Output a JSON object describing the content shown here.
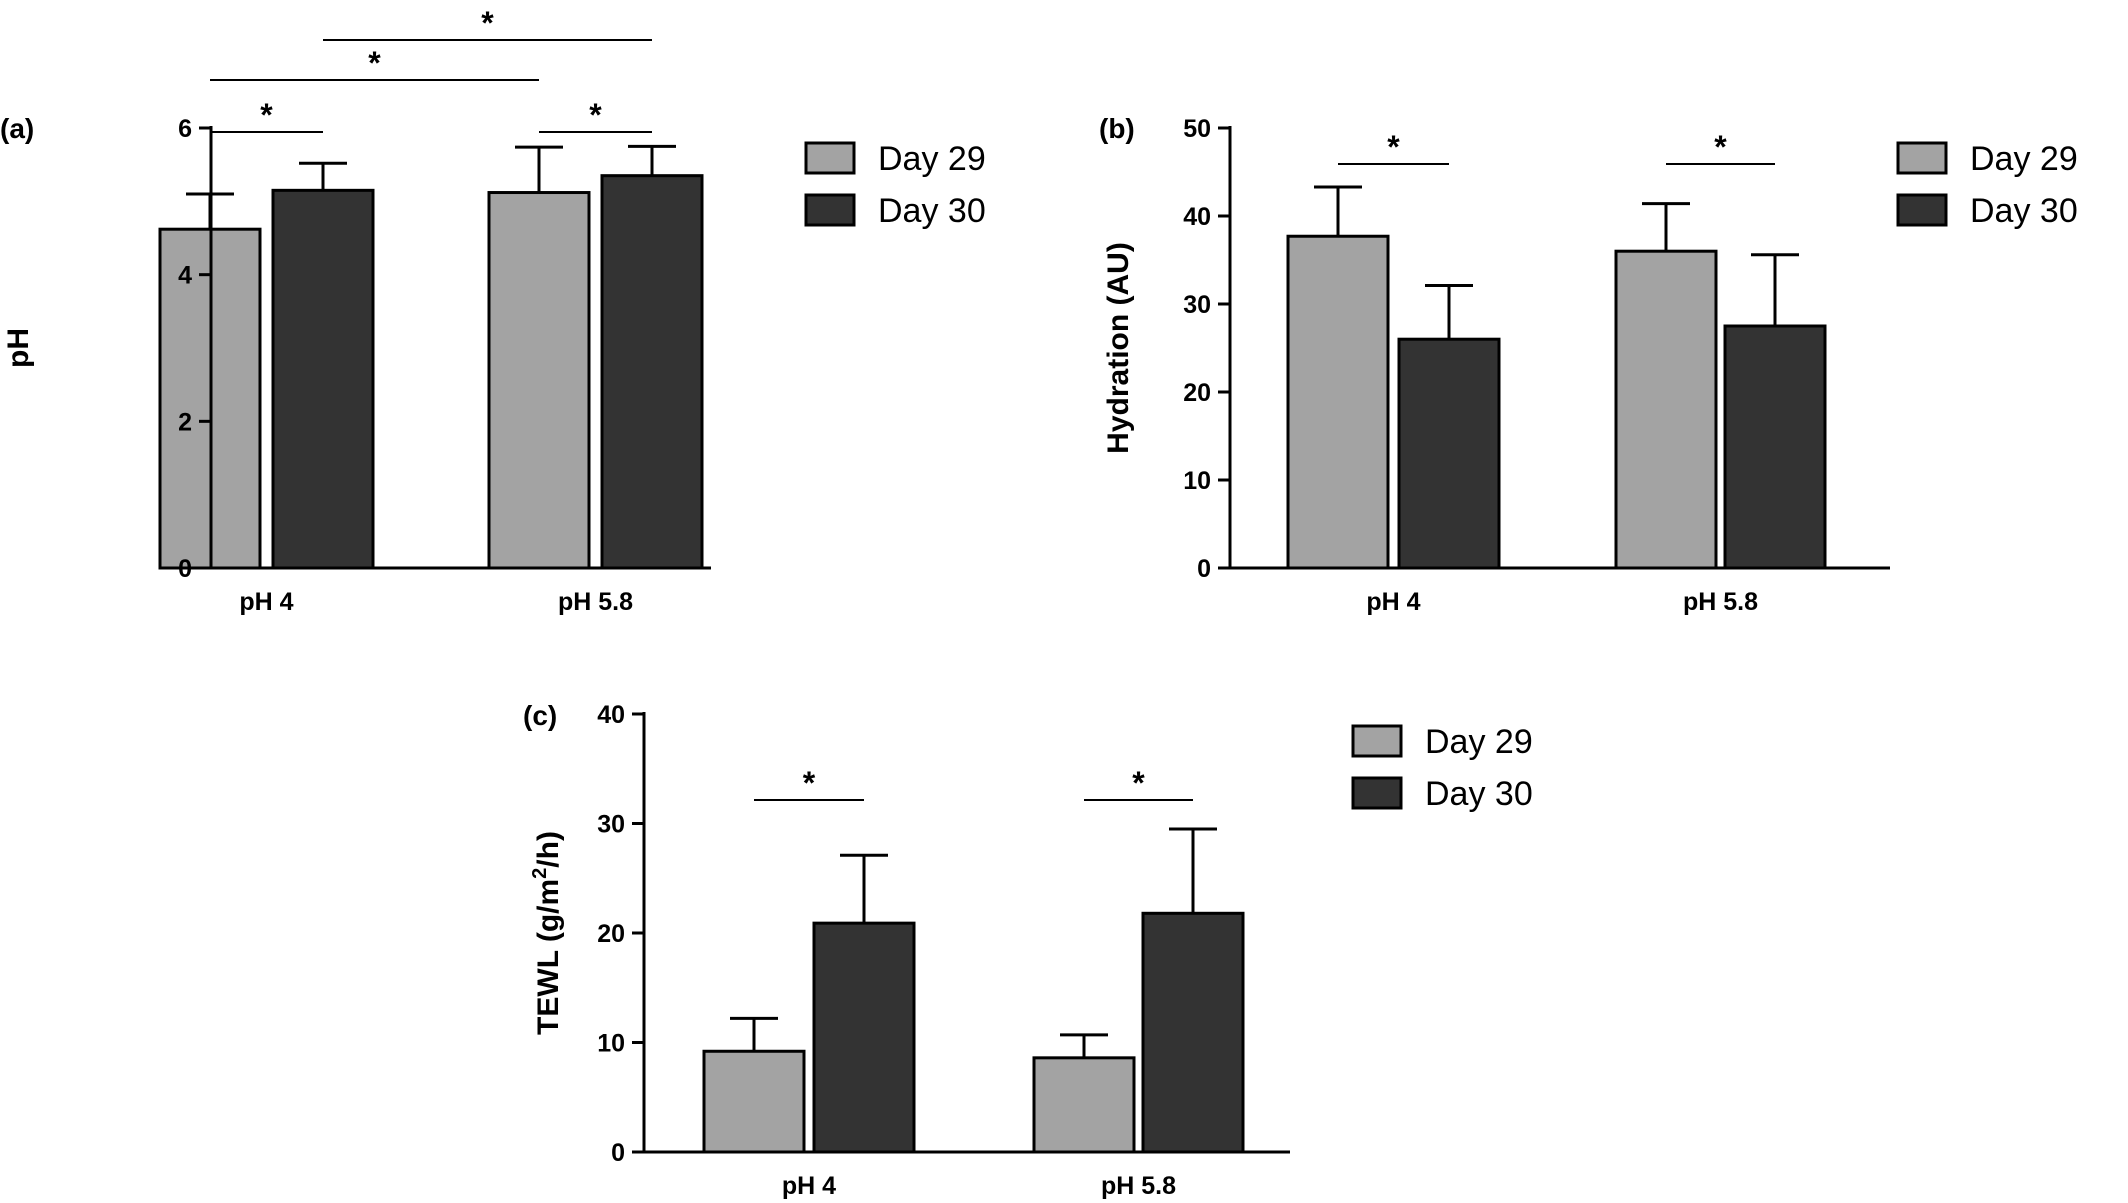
{
  "chart_data": [
    {
      "type": "bar",
      "panel_label": "(a)",
      "categories": [
        "pH 4",
        "pH 5.8"
      ],
      "ylabel": "pH",
      "ylim": [
        0,
        6
      ],
      "yticks": [
        0,
        2,
        4,
        6
      ],
      "series": [
        {
          "name": "Day 29",
          "color": "#a3a3a3",
          "values": [
            4.62,
            5.12
          ],
          "errors": [
            0.48,
            0.62
          ]
        },
        {
          "name": "Day 30",
          "color": "#333333",
          "values": [
            5.15,
            5.35
          ],
          "errors": [
            0.37,
            0.4
          ]
        }
      ],
      "significance": [
        {
          "from": [
            0,
            0
          ],
          "to": [
            0,
            1
          ],
          "label": "*"
        },
        {
          "from": [
            1,
            0
          ],
          "to": [
            1,
            1
          ],
          "label": "*"
        },
        {
          "from": [
            0,
            0
          ],
          "to": [
            1,
            0
          ],
          "label": "*"
        },
        {
          "from": [
            0,
            1
          ],
          "to": [
            1,
            1
          ],
          "label": "*"
        }
      ],
      "legend": [
        "Day 29",
        "Day 30"
      ],
      "legend_position": "right"
    },
    {
      "type": "bar",
      "panel_label": "(b)",
      "categories": [
        "pH 4",
        "pH 5.8"
      ],
      "ylabel": "Hydration (AU)",
      "ylim": [
        0,
        50
      ],
      "yticks": [
        0,
        10,
        20,
        30,
        40,
        50
      ],
      "series": [
        {
          "name": "Day 29",
          "color": "#a3a3a3",
          "values": [
            37.7,
            36.0
          ],
          "errors": [
            5.6,
            5.4
          ]
        },
        {
          "name": "Day 30",
          "color": "#333333",
          "values": [
            26.0,
            27.5
          ],
          "errors": [
            6.1,
            8.1
          ]
        }
      ],
      "significance": [
        {
          "from": [
            0,
            0
          ],
          "to": [
            0,
            1
          ],
          "label": "*"
        },
        {
          "from": [
            1,
            0
          ],
          "to": [
            1,
            1
          ],
          "label": "*"
        }
      ],
      "legend": [
        "Day 29",
        "Day 30"
      ],
      "legend_position": "right"
    },
    {
      "type": "bar",
      "panel_label": "(c)",
      "categories": [
        "pH 4",
        "pH 5.8"
      ],
      "ylabel": "TEWL (g/m²/h)",
      "ylabel_parts": [
        "TEWL (g/m",
        "2",
        "/h)"
      ],
      "ylim": [
        0,
        40
      ],
      "yticks": [
        0,
        10,
        20,
        30,
        40
      ],
      "series": [
        {
          "name": "Day 29",
          "color": "#a3a3a3",
          "values": [
            9.2,
            8.6
          ],
          "errors": [
            3.0,
            2.1
          ]
        },
        {
          "name": "Day 30",
          "color": "#333333",
          "values": [
            20.9,
            21.8
          ],
          "errors": [
            6.2,
            7.7
          ]
        }
      ],
      "significance": [
        {
          "from": [
            0,
            0
          ],
          "to": [
            0,
            1
          ],
          "label": "*"
        },
        {
          "from": [
            1,
            0
          ],
          "to": [
            1,
            1
          ],
          "label": "*"
        }
      ],
      "legend": [
        "Day 29",
        "Day 30"
      ],
      "legend_position": "right"
    }
  ]
}
